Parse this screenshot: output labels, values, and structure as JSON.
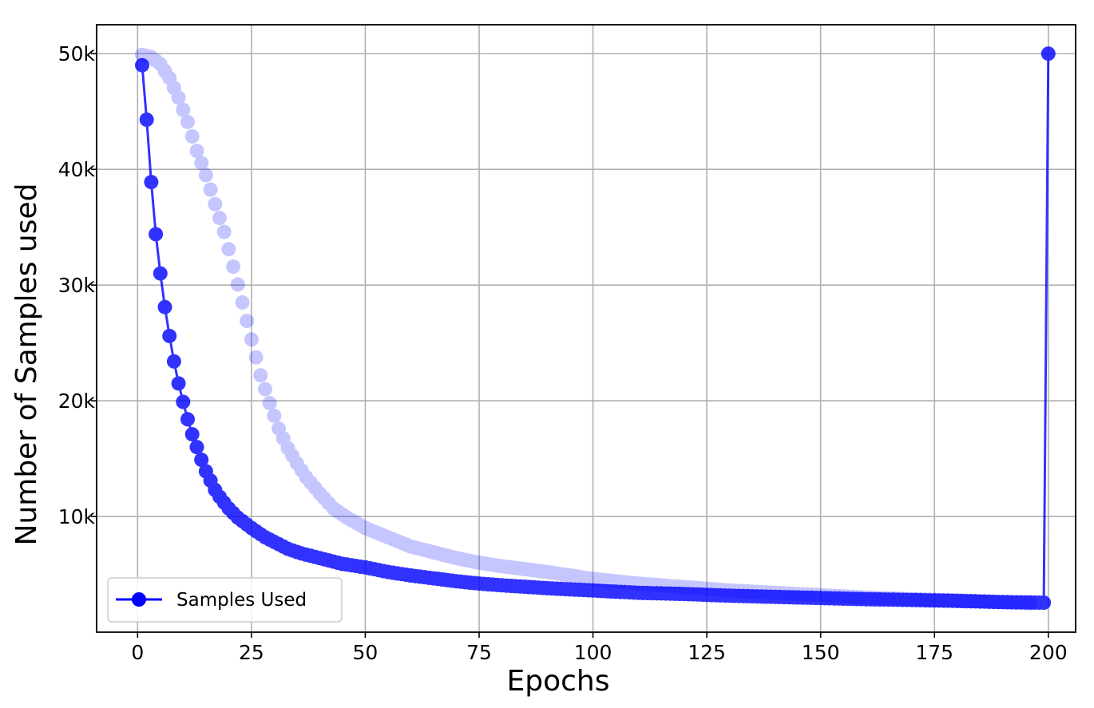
{
  "chart_data": {
    "type": "line",
    "title": "",
    "xlabel": "Epochs",
    "ylabel": "Number of Samples used",
    "xlim": [
      -9,
      206
    ],
    "ylim": [
      0,
      52500
    ],
    "x_ticks": [
      0,
      25,
      50,
      75,
      100,
      125,
      150,
      175,
      200
    ],
    "x_tick_labels": [
      "0",
      "25",
      "50",
      "75",
      "100",
      "125",
      "150",
      "175",
      "200"
    ],
    "y_ticks": [
      10000,
      20000,
      30000,
      40000,
      50000
    ],
    "y_tick_labels": [
      "10k",
      "20k",
      "30k",
      "40k",
      "50k"
    ],
    "grid": true,
    "legend_position": "lower-left",
    "series": [
      {
        "name": "Samples Used",
        "color": "#0000ff",
        "style": "line-with-markers",
        "legend": true,
        "points": [
          [
            1,
            49000
          ],
          [
            2,
            44300
          ],
          [
            3,
            38900
          ],
          [
            4,
            34400
          ],
          [
            5,
            31000
          ],
          [
            6,
            28100
          ],
          [
            7,
            25600
          ],
          [
            8,
            23400
          ],
          [
            9,
            21500
          ],
          [
            10,
            19900
          ],
          [
            11,
            18400
          ],
          [
            12,
            17100
          ],
          [
            13,
            16000
          ],
          [
            14,
            14900
          ],
          [
            15,
            13900
          ],
          [
            16,
            13100
          ],
          [
            17,
            12300
          ],
          [
            18,
            11700
          ],
          [
            19,
            11200
          ],
          [
            20,
            10700
          ],
          [
            22,
            9900
          ],
          [
            25,
            9000
          ],
          [
            28,
            8200
          ],
          [
            30,
            7800
          ],
          [
            33,
            7200
          ],
          [
            36,
            6800
          ],
          [
            40,
            6400
          ],
          [
            45,
            5900
          ],
          [
            50,
            5600
          ],
          [
            55,
            5200
          ],
          [
            60,
            4900
          ],
          [
            65,
            4650
          ],
          [
            70,
            4400
          ],
          [
            75,
            4200
          ],
          [
            80,
            4050
          ],
          [
            90,
            3800
          ],
          [
            100,
            3600
          ],
          [
            110,
            3400
          ],
          [
            120,
            3300
          ],
          [
            130,
            3150
          ],
          [
            140,
            3050
          ],
          [
            150,
            2950
          ],
          [
            160,
            2850
          ],
          [
            170,
            2780
          ],
          [
            180,
            2700
          ],
          [
            190,
            2600
          ],
          [
            199,
            2550
          ],
          [
            200,
            50000
          ]
        ]
      },
      {
        "name": "",
        "color": "#0000ff",
        "opacity": 0.22,
        "style": "markers",
        "legend": false,
        "points": [
          [
            1,
            49900
          ],
          [
            3,
            49700
          ],
          [
            5,
            49100
          ],
          [
            7,
            47900
          ],
          [
            9,
            46200
          ],
          [
            11,
            44100
          ],
          [
            13,
            41600
          ],
          [
            15,
            39500
          ],
          [
            17,
            37000
          ],
          [
            19,
            34600
          ],
          [
            21,
            31600
          ],
          [
            23,
            28500
          ],
          [
            25,
            25300
          ],
          [
            27,
            22200
          ],
          [
            29,
            19800
          ],
          [
            31,
            17600
          ],
          [
            33,
            15900
          ],
          [
            35,
            14600
          ],
          [
            37,
            13400
          ],
          [
            40,
            12000
          ],
          [
            43,
            10700
          ],
          [
            46,
            9900
          ],
          [
            50,
            9000
          ],
          [
            55,
            8200
          ],
          [
            60,
            7400
          ],
          [
            65,
            6900
          ],
          [
            70,
            6400
          ],
          [
            75,
            6000
          ],
          [
            80,
            5700
          ],
          [
            90,
            5200
          ],
          [
            100,
            4600
          ],
          [
            110,
            4200
          ],
          [
            120,
            3900
          ],
          [
            130,
            3600
          ],
          [
            140,
            3400
          ],
          [
            150,
            3200
          ],
          [
            160,
            3000
          ],
          [
            170,
            2850
          ],
          [
            180,
            2750
          ],
          [
            190,
            2600
          ],
          [
            196,
            2500
          ]
        ]
      }
    ]
  }
}
